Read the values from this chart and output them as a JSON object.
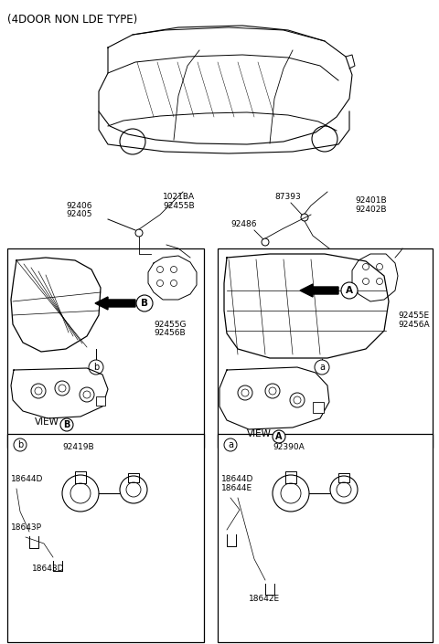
{
  "title": "(4DOOR NON LDE TYPE)",
  "bg_color": "#ffffff",
  "line_color": "#000000",
  "labels": {
    "top_center_1": "1021BA",
    "top_center_2": "92455B",
    "top_right_1": "87393",
    "top_left_B": "92406",
    "top_left_B2": "92405",
    "right_top_1": "92401B",
    "right_top_2": "92402B",
    "left_92486": "92486",
    "left_box_part1": "92455G",
    "left_box_part2": "92456B",
    "right_box_part1": "92455E",
    "right_box_part2": "92456A",
    "view_b": "VIEW",
    "view_a": "VIEW",
    "b_circle": "b",
    "a_circle": "a",
    "B_circle": "B",
    "A_circle": "A",
    "left_bottom_92419B": "92419B",
    "left_bottom_18644D": "18644D",
    "left_bottom_18643P": "18643P",
    "left_bottom_18643D": "18643D",
    "right_bottom_92390A": "92390A",
    "right_bottom_18644D": "18644D",
    "right_bottom_18644E": "18644E",
    "right_bottom_18642E": "18642E"
  }
}
